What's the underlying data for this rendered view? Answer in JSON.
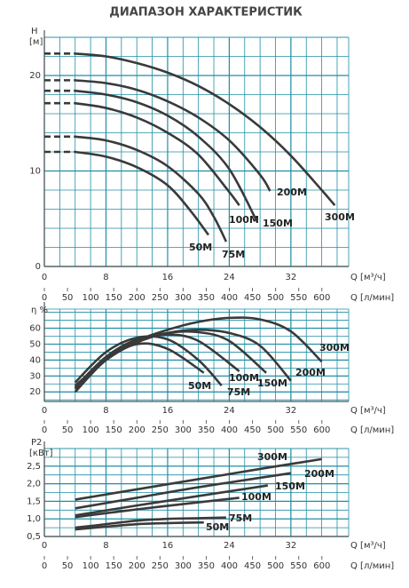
{
  "title": "ДИАПАЗОН ХАРАКТЕРИСТИК",
  "chart_data": [
    {
      "type": "line",
      "y_label": "H",
      "y_unit": "[м]",
      "xlabel": "Q [м³/ч]",
      "x2label": "Q [л/мин]",
      "xlim": [
        0,
        39.5
      ],
      "xticks": [
        0,
        8,
        16,
        24,
        32
      ],
      "x2lim": [
        0,
        658
      ],
      "x2ticks": [
        0,
        50,
        100,
        150,
        200,
        250,
        300,
        350,
        400,
        450,
        500,
        550,
        600
      ],
      "ylim": [
        0,
        24
      ],
      "yticks": [
        0,
        10,
        20
      ],
      "grid": true,
      "series": [
        {
          "name": "50M",
          "color": "#3a3a3a",
          "x": [
            0,
            4,
            8,
            12,
            16,
            19,
            21.3
          ],
          "values": [
            12,
            12,
            11.5,
            10.4,
            8.5,
            5.8,
            3.3
          ]
        },
        {
          "name": "75M",
          "color": "#3a3a3a",
          "x": [
            0,
            4,
            8,
            12,
            16,
            20,
            22,
            23.6
          ],
          "values": [
            13.6,
            13.6,
            13.2,
            12.2,
            10.5,
            7.6,
            5.2,
            2.6
          ]
        },
        {
          "name": "100M",
          "color": "#3a3a3a",
          "x": [
            0,
            4,
            8,
            12,
            16,
            20,
            24,
            25.3
          ],
          "values": [
            17.1,
            17.1,
            16.6,
            15.6,
            14,
            11.7,
            7.8,
            6.4
          ]
        },
        {
          "name": "150M",
          "color": "#3a3a3a",
          "x": [
            0,
            4,
            8,
            12,
            16,
            20,
            24,
            27.6
          ],
          "values": [
            18.4,
            18.4,
            18,
            17.2,
            15.8,
            13.6,
            10.2,
            4.7
          ]
        },
        {
          "name": "200M",
          "color": "#3a3a3a",
          "x": [
            0,
            4,
            8,
            12,
            16,
            20,
            24,
            28,
            29.3
          ],
          "values": [
            19.5,
            19.5,
            19.2,
            18.5,
            17.3,
            15.6,
            13.2,
            9.6,
            7.9
          ]
        },
        {
          "name": "300M",
          "color": "#3a3a3a",
          "x": [
            0,
            4,
            8,
            12,
            16,
            20,
            24,
            28,
            32,
            36,
            37.7
          ],
          "values": [
            22.3,
            22.3,
            22,
            21.3,
            20.3,
            18.9,
            17,
            14.6,
            11.6,
            8,
            6.4
          ]
        }
      ]
    },
    {
      "type": "line",
      "y_label": "η %",
      "xlabel": "Q [м³/ч]",
      "x2label": "Q [л/мин]",
      "xlim": [
        0,
        39.5
      ],
      "xticks": [
        0,
        8,
        16,
        24,
        32
      ],
      "x2lim": [
        0,
        658
      ],
      "x2ticks": [
        0,
        50,
        100,
        150,
        200,
        250,
        300,
        350,
        400,
        450,
        500,
        550,
        600
      ],
      "ylim": [
        14,
        72
      ],
      "yticks": [
        20,
        30,
        40,
        50,
        60
      ],
      "grid": true,
      "series": [
        {
          "name": "50M",
          "color": "#3a3a3a",
          "x": [
            4,
            8,
            12,
            16,
            20.7
          ],
          "values": [
            20,
            40,
            50,
            47,
            32
          ]
        },
        {
          "name": "75M",
          "color": "#3a3a3a",
          "x": [
            4,
            8,
            12,
            16,
            20,
            23
          ],
          "values": [
            26,
            45,
            54,
            53,
            40,
            24
          ]
        },
        {
          "name": "100M",
          "color": "#3a3a3a",
          "x": [
            4,
            8,
            12,
            16,
            20,
            25.3
          ],
          "values": [
            23,
            42,
            53,
            56,
            52,
            33
          ]
        },
        {
          "name": "150M",
          "color": "#3a3a3a",
          "x": [
            4,
            8,
            12,
            16,
            20,
            24,
            28.8
          ],
          "values": [
            22,
            41,
            52,
            57,
            57.5,
            52,
            32
          ]
        },
        {
          "name": "200M",
          "color": "#3a3a3a",
          "x": [
            4,
            8,
            12,
            16,
            20,
            24,
            28,
            32
          ],
          "values": [
            22,
            40,
            51,
            57,
            59,
            57,
            49,
            27
          ]
        },
        {
          "name": "300M",
          "color": "#3a3a3a",
          "x": [
            4,
            8,
            12,
            16,
            20,
            24,
            28,
            32,
            36
          ],
          "values": [
            24,
            40,
            52,
            59,
            64,
            66.5,
            65.5,
            58,
            39
          ]
        }
      ]
    },
    {
      "type": "line",
      "y_label": "P2",
      "y_unit": "[кВт]",
      "xlabel": "Q [м³/ч]",
      "x2label": "Q [л/мин]",
      "xlim": [
        0,
        39.5
      ],
      "xticks": [
        0,
        8,
        16,
        24,
        32
      ],
      "x2lim": [
        0,
        658
      ],
      "x2ticks": [
        0,
        50,
        100,
        150,
        200,
        250,
        300,
        350,
        400,
        450,
        500,
        550,
        600
      ],
      "ylim": [
        0.5,
        3.0
      ],
      "yticks": [
        {
          "value": 0.5,
          "label": "0,5"
        },
        {
          "value": 1.0,
          "label": "1,0"
        },
        {
          "value": 1.5,
          "label": "1,5"
        },
        {
          "value": 2.0,
          "label": "2,0"
        },
        {
          "value": 2.5,
          "label": "2,5"
        }
      ],
      "grid": true,
      "series": [
        {
          "name": "50M",
          "color": "#3a3a3a",
          "x": [
            4,
            8,
            12,
            16,
            20.7
          ],
          "values": [
            0.7,
            0.78,
            0.85,
            0.88,
            0.9
          ]
        },
        {
          "name": "75M",
          "color": "#3a3a3a",
          "x": [
            4,
            8,
            12,
            16,
            20,
            23.6
          ],
          "values": [
            0.75,
            0.85,
            0.95,
            1.0,
            1.02,
            1.04
          ]
        },
        {
          "name": "100M",
          "color": "#3a3a3a",
          "x": [
            4,
            12,
            20,
            25.3
          ],
          "values": [
            1.05,
            1.27,
            1.47,
            1.6
          ]
        },
        {
          "name": "150M",
          "color": "#3a3a3a",
          "x": [
            4,
            12,
            20,
            29
          ],
          "values": [
            1.1,
            1.38,
            1.65,
            1.95
          ]
        },
        {
          "name": "200M",
          "color": "#3a3a3a",
          "x": [
            4,
            12,
            20,
            32
          ],
          "values": [
            1.3,
            1.6,
            1.9,
            2.3
          ]
        },
        {
          "name": "300M",
          "color": "#3a3a3a",
          "x": [
            4,
            12,
            20,
            28,
            36
          ],
          "values": [
            1.55,
            1.84,
            2.13,
            2.42,
            2.7
          ]
        }
      ]
    }
  ]
}
